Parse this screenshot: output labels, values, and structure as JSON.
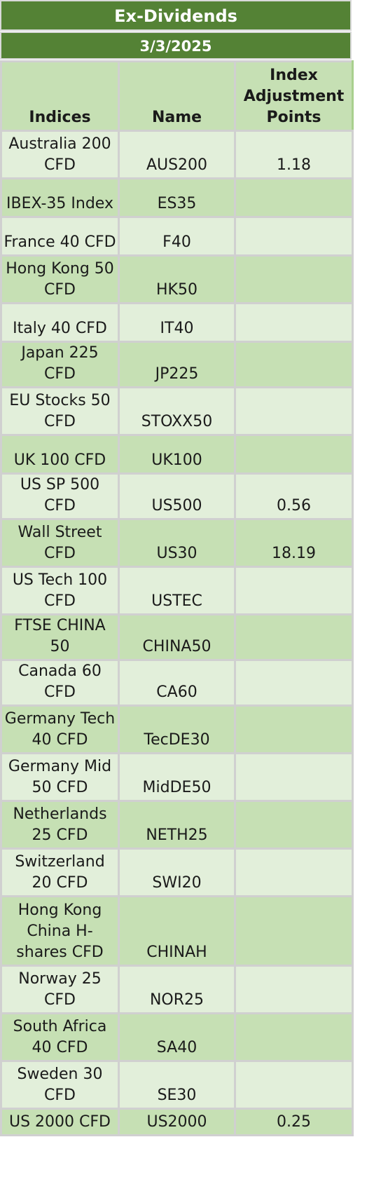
{
  "title": "Ex-Dividends",
  "date": "3/3/2025",
  "headers": [
    "Indices",
    "Name",
    "Index Adjustment Points"
  ],
  "rows": [
    {
      "index": "Australia 200 CFD",
      "name": "AUS200",
      "points": "1.18",
      "h": 68
    },
    {
      "index": "IBEX-35 Index",
      "name": "ES35",
      "points": "",
      "h": 55
    },
    {
      "index": "France 40 CFD",
      "name": "F40",
      "points": "",
      "h": 55
    },
    {
      "index": "Hong Kong 50 CFD",
      "name": "HK50",
      "points": "",
      "h": 68
    },
    {
      "index": "Italy 40 CFD",
      "name": "IT40",
      "points": "",
      "h": 55
    },
    {
      "index": "Japan 225 CFD",
      "name": "JP225",
      "points": "",
      "h": 55
    },
    {
      "index": "EU Stocks 50 CFD",
      "name": "STOXX50",
      "points": "",
      "h": 68
    },
    {
      "index": "UK 100 CFD",
      "name": "UK100",
      "points": "",
      "h": 55
    },
    {
      "index": "US SP 500 CFD",
      "name": "US500",
      "points": "0.56",
      "h": 38
    },
    {
      "index": "Wall Street CFD",
      "name": "US30",
      "points": "18.19",
      "h": 68
    },
    {
      "index": "US Tech 100 CFD",
      "name": "USTEC",
      "points": "",
      "h": 68
    },
    {
      "index": "FTSE CHINA 50",
      "name": "CHINA50",
      "points": "",
      "h": 55
    },
    {
      "index": "Canada 60 CFD",
      "name": "CA60",
      "points": "",
      "h": 55
    },
    {
      "index": "Germany Tech 40 CFD",
      "name": "TecDE30",
      "points": "",
      "h": 68
    },
    {
      "index": "Germany Mid 50 CFD",
      "name": "MidDE50",
      "points": "",
      "h": 68
    },
    {
      "index": "Netherlands 25 CFD",
      "name": "NETH25",
      "points": "",
      "h": 68
    },
    {
      "index": "Switzerland 20 CFD",
      "name": "SWI20",
      "points": "",
      "h": 68
    },
    {
      "index": "Hong Kong China H-shares CFD",
      "name": "CHINAH",
      "points": "",
      "h": 99
    },
    {
      "index": "Norway 25 CFD",
      "name": "NOR25",
      "points": "",
      "h": 68
    },
    {
      "index": "South Africa 40 CFD",
      "name": "SA40",
      "points": "",
      "h": 68
    },
    {
      "index": "Sweden 30 CFD",
      "name": "SE30",
      "points": "",
      "h": 68
    },
    {
      "index": "US 2000 CFD",
      "name": "US2000",
      "points": "0.25",
      "h": 38
    }
  ]
}
